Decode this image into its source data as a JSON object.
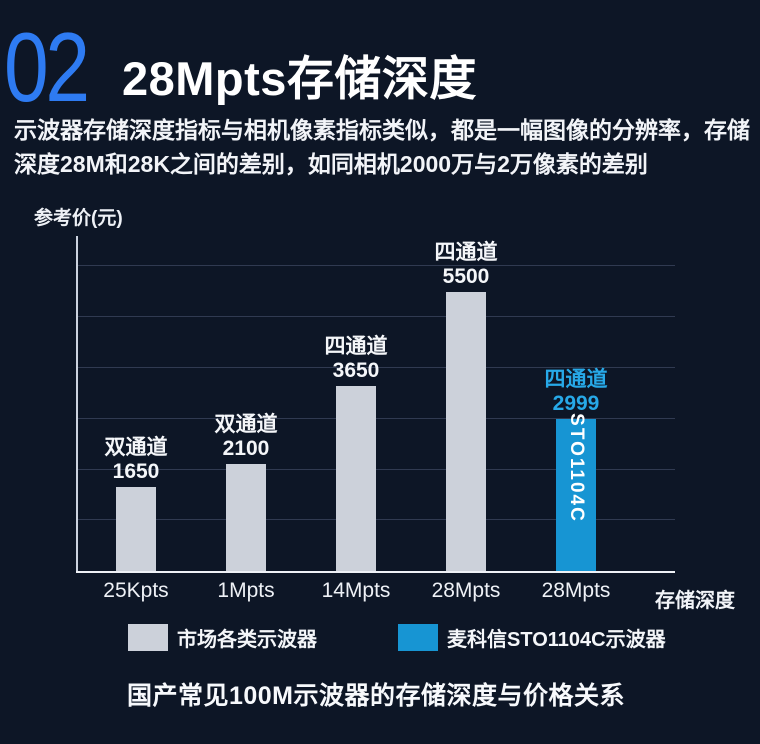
{
  "header": {
    "index_number": "02",
    "title": "28Mpts存储深度",
    "description_lines": [
      "示波器存储深度指标与相机像素指标类似，都是一幅图像的分辨率，存储",
      "深度28M和28K之间的差别，如同相机2000万与2万像素的差别"
    ]
  },
  "chart_data": {
    "type": "bar",
    "title": "国产常见100M示波器的存储深度与价格关系",
    "ylabel": "参考价(元)",
    "xlabel": "存储深度",
    "ylim": [
      0,
      6600
    ],
    "grid_step": 1000,
    "grid_max": 6000,
    "grid_on": true,
    "categories": [
      "25Kpts",
      "1Mpts",
      "14Mpts",
      "28Mpts",
      "28Mpts"
    ],
    "bars": [
      {
        "category": "25Kpts",
        "channel": "双通道",
        "value": 1650,
        "group": "market",
        "bar_text": ""
      },
      {
        "category": "1Mpts",
        "channel": "双通道",
        "value": 2100,
        "group": "market",
        "bar_text": ""
      },
      {
        "category": "14Mpts",
        "channel": "四通道",
        "value": 3650,
        "group": "market",
        "bar_text": ""
      },
      {
        "category": "28Mpts",
        "channel": "四通道",
        "value": 5500,
        "group": "market",
        "bar_text": ""
      },
      {
        "category": "28Mpts",
        "channel": "四通道",
        "value": 2999,
        "group": "micsig",
        "bar_text": "STO1104C"
      }
    ],
    "legend": [
      {
        "key": "market",
        "label": "市场各类示波器",
        "color": "#ccd1da"
      },
      {
        "key": "micsig",
        "label": "麦科信STO1104C示波器",
        "color": "#1795d3"
      }
    ],
    "legend_position": "bottom",
    "colors": {
      "background": "#0d1626",
      "accent_number": "#2e7bf2",
      "bar_market": "#ccd1da",
      "bar_micsig": "#1795d3",
      "micsig_label_text": "#27a9e8",
      "axis_line": "#eef1f6",
      "gridline": "#2b344d",
      "text": "#f4f6f9"
    }
  }
}
